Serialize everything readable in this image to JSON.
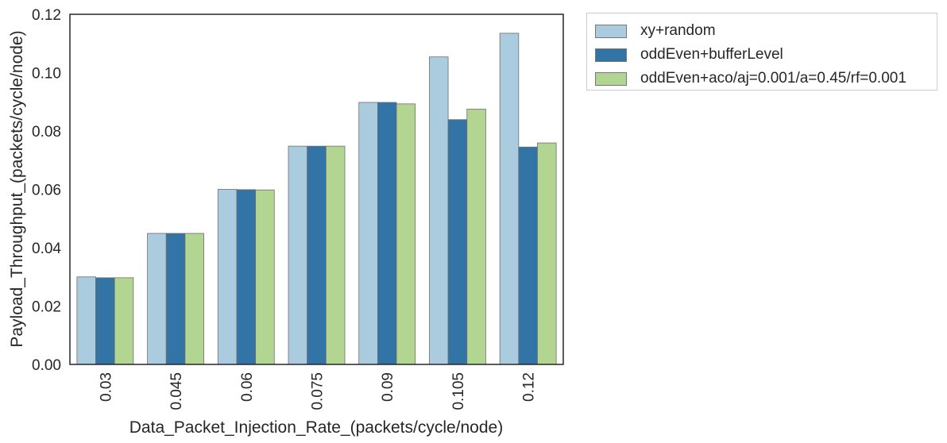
{
  "chart_data": {
    "type": "bar",
    "xlabel": "Data_Packet_Injection_Rate_(packets/cycle/node)",
    "ylabel": "Payload_Throughput_(packets/cycle/node)",
    "categories": [
      "0.03",
      "0.045",
      "0.06",
      "0.075",
      "0.09",
      "0.105",
      "0.12"
    ],
    "ylim": [
      0,
      0.12
    ],
    "yticks": [
      "0.00",
      "0.02",
      "0.04",
      "0.06",
      "0.08",
      "0.10",
      "0.12"
    ],
    "grid": false,
    "legend_position": "outside-top-right",
    "series": [
      {
        "name": "xy+random",
        "color": "#abcbdf",
        "values": [
          0.03,
          0.0449,
          0.06,
          0.0748,
          0.0898,
          0.1054,
          0.1135
        ]
      },
      {
        "name": "oddEven+bufferLevel",
        "color": "#3274a6",
        "values": [
          0.0297,
          0.0449,
          0.0599,
          0.0748,
          0.0898,
          0.0839,
          0.0745
        ]
      },
      {
        "name": "oddEven+aco/aj=0.001/a=0.45/rf=0.001",
        "color": "#b2d592",
        "values": [
          0.0297,
          0.0449,
          0.0598,
          0.0748,
          0.0893,
          0.0875,
          0.0759
        ]
      }
    ]
  }
}
